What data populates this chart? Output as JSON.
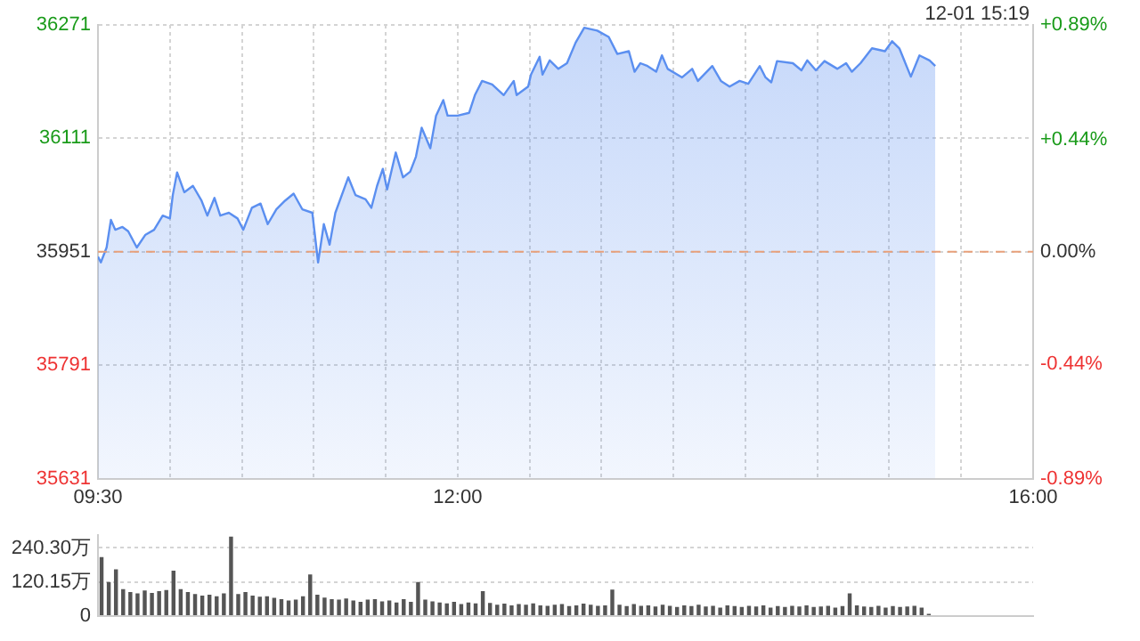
{
  "chart_data": [
    {
      "type": "area",
      "subtitle": "12-01 15:19",
      "xlim": [
        9.5,
        16
      ],
      "xticks": [
        {
          "value": 9.5,
          "label": "09:30"
        },
        {
          "value": 10,
          "label": null
        },
        {
          "value": 10.5,
          "label": null
        },
        {
          "value": 11,
          "label": null
        },
        {
          "value": 11.5,
          "label": null
        },
        {
          "value": 12,
          "label": "12:00"
        },
        {
          "value": 12.5,
          "label": null
        },
        {
          "value": 13,
          "label": null
        },
        {
          "value": 13.5,
          "label": null
        },
        {
          "value": 14,
          "label": null
        },
        {
          "value": 14.5,
          "label": null
        },
        {
          "value": 15,
          "label": null
        },
        {
          "value": 15.5,
          "label": null
        },
        {
          "value": 16,
          "label": "16:00"
        }
      ],
      "ylim": [
        35631,
        36271
      ],
      "yticks": [
        35631,
        35791,
        35951,
        36111,
        36271
      ],
      "y2lim": [
        -0.89,
        0.89
      ],
      "y2ticks": [
        {
          "value": -0.89,
          "label": "-0.89%"
        },
        {
          "value": -0.44,
          "label": "-0.44%"
        },
        {
          "value": 0,
          "label": "0.00%"
        },
        {
          "value": 0.44,
          "label": "+0.44%"
        },
        {
          "value": 0.89,
          "label": "+0.89%"
        }
      ],
      "grid": true,
      "legend": false,
      "marker": "none",
      "line_style": "solid",
      "ref_lines": [
        {
          "axis": "y",
          "value": 35951,
          "color": "#e8a07a",
          "line_style": "dashed"
        }
      ],
      "series": [
        {
          "color": "#5b8ff0",
          "x": [
            9.5,
            9.52,
            9.56,
            9.59,
            9.62,
            9.67,
            9.71,
            9.77,
            9.83,
            9.89,
            9.95,
            10.0,
            10.02,
            10.05,
            10.1,
            10.16,
            10.22,
            10.26,
            10.31,
            10.35,
            10.41,
            10.47,
            10.51,
            10.57,
            10.63,
            10.68,
            10.74,
            10.8,
            10.86,
            10.92,
            10.99,
            11.03,
            11.07,
            11.11,
            11.15,
            11.24,
            11.29,
            11.36,
            11.4,
            11.44,
            11.48,
            11.51,
            11.57,
            11.62,
            11.67,
            11.71,
            11.75,
            11.81,
            11.85,
            11.9,
            11.93,
            12.0,
            12.08,
            12.12,
            12.17,
            12.24,
            12.32,
            12.39,
            12.41,
            12.49,
            12.51,
            12.57,
            12.59,
            12.64,
            12.7,
            12.76,
            12.82,
            12.88,
            12.97,
            13.05,
            13.11,
            13.19,
            13.23,
            13.27,
            13.32,
            13.38,
            13.42,
            13.46,
            13.56,
            13.63,
            13.67,
            13.77,
            13.83,
            13.89,
            13.96,
            14.02,
            14.1,
            14.14,
            14.18,
            14.22,
            14.33,
            14.39,
            14.43,
            14.49,
            14.55,
            14.64,
            14.7,
            14.74,
            14.8,
            14.88,
            14.97,
            15.02,
            15.07,
            15.15,
            15.21,
            15.28,
            15.32
          ],
          "values": [
            35944,
            35936,
            35957,
            35996,
            35982,
            35986,
            35980,
            35957,
            35975,
            35982,
            36002,
            35998,
            36031,
            36063,
            36035,
            36044,
            36023,
            36002,
            36027,
            36002,
            36006,
            35998,
            35982,
            36013,
            36019,
            35990,
            36011,
            36023,
            36033,
            36011,
            36006,
            35936,
            35990,
            35961,
            36006,
            36056,
            36031,
            36025,
            36013,
            36044,
            36068,
            36039,
            36091,
            36056,
            36064,
            36085,
            36126,
            36097,
            36143,
            36165,
            36143,
            36143,
            36147,
            36172,
            36192,
            36187,
            36172,
            36192,
            36172,
            36184,
            36201,
            36226,
            36201,
            36221,
            36209,
            36217,
            36246,
            36267,
            36263,
            36254,
            36230,
            36234,
            36205,
            36217,
            36213,
            36205,
            36228,
            36209,
            36197,
            36209,
            36192,
            36213,
            36192,
            36184,
            36192,
            36188,
            36213,
            36197,
            36190,
            36220,
            36217,
            36207,
            36221,
            36207,
            36220,
            36209,
            36217,
            36205,
            36217,
            36238,
            36234,
            36248,
            36238,
            36198,
            36228,
            36221,
            36213
          ]
        }
      ]
    },
    {
      "type": "bar",
      "ylim": [
        0,
        285
      ],
      "yticks": [
        0,
        {
          "value": 120.15,
          "label": "120.15万"
        },
        {
          "value": 240.3,
          "label": "240.30万"
        }
      ],
      "grid": "y",
      "legend": false,
      "tick_labels": "y",
      "categories": [
        null,
        null,
        null,
        null,
        null,
        null,
        null,
        null,
        null,
        null,
        null,
        null,
        null,
        null,
        null,
        null,
        null,
        null,
        null,
        null,
        null,
        null,
        null,
        null,
        null,
        null,
        null,
        null,
        null,
        null,
        null,
        null,
        null,
        null,
        null,
        null,
        null,
        null,
        null,
        null,
        null,
        null,
        null,
        null,
        null,
        null,
        null,
        null,
        null,
        null,
        null,
        null,
        null,
        null,
        null,
        null,
        null,
        null,
        null,
        null,
        null,
        null,
        null,
        null,
        null,
        null,
        null,
        null,
        null,
        null,
        null,
        null,
        null,
        null,
        null,
        null,
        null,
        null,
        null,
        null,
        null,
        null,
        null,
        null,
        null,
        null,
        null,
        null,
        null,
        null,
        null,
        null,
        null,
        null,
        null,
        null,
        null,
        null,
        null,
        null,
        null,
        null,
        null,
        null,
        null,
        null,
        null,
        null,
        null,
        null,
        null,
        null,
        null,
        null,
        null,
        null,
        null,
        null,
        null,
        null,
        null,
        null,
        null,
        null,
        null,
        null,
        null,
        null,
        null,
        null
      ],
      "series": [
        {
          "color": "#555555",
          "values": [
            208,
            120,
            165,
            95,
            85,
            80,
            90,
            82,
            88,
            92,
            160,
            95,
            85,
            78,
            72,
            75,
            70,
            80,
            280,
            78,
            85,
            72,
            68,
            70,
            64,
            60,
            55,
            58,
            70,
            147,
            75,
            65,
            60,
            58,
            62,
            55,
            50,
            58,
            60,
            52,
            55,
            48,
            60,
            50,
            120,
            58,
            52,
            48,
            45,
            50,
            42,
            48,
            45,
            88,
            46,
            40,
            44,
            38,
            42,
            40,
            45,
            38,
            36,
            40,
            42,
            35,
            38,
            44,
            40,
            36,
            38,
            93,
            40,
            35,
            42,
            36,
            38,
            34,
            40,
            36,
            32,
            38,
            35,
            40,
            34,
            36,
            30,
            38,
            35,
            32,
            36,
            34,
            38,
            30,
            35,
            32,
            36,
            34,
            38,
            32,
            34,
            36,
            30,
            35,
            80,
            38,
            34,
            32,
            36,
            30,
            35,
            32,
            34,
            36,
            30,
            8,
            null,
            null,
            null,
            null,
            null,
            null,
            null,
            null,
            null,
            null,
            null,
            null,
            null,
            null
          ]
        }
      ]
    }
  ]
}
